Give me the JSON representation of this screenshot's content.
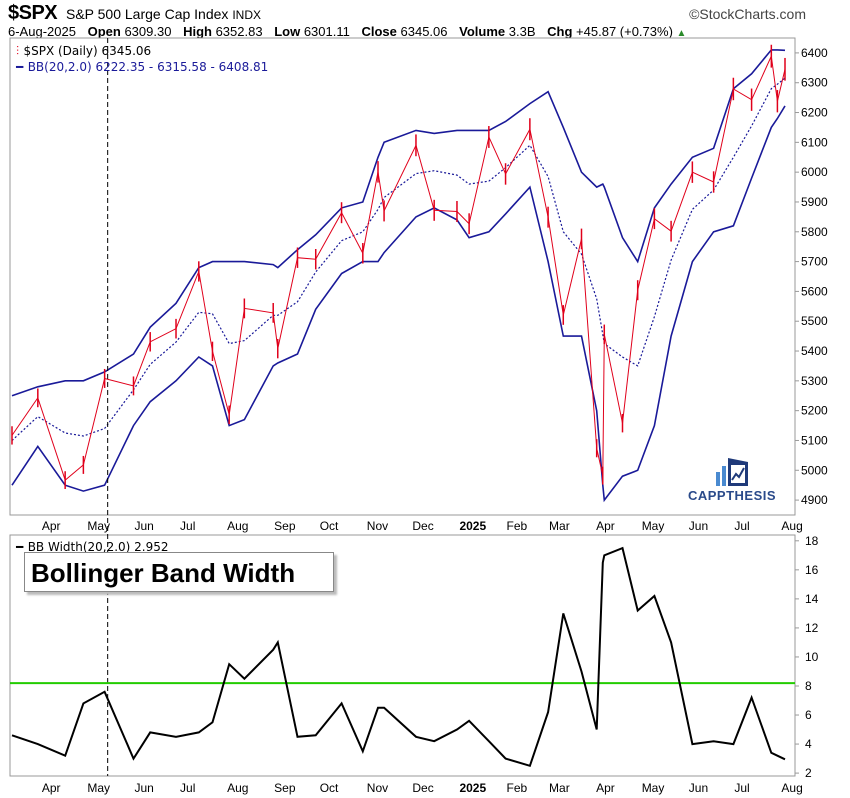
{
  "header": {
    "symbol": "$SPX",
    "name": "S&P 500 Large Cap Index",
    "exchange": "INDX",
    "source": "©StockCharts.com",
    "date": "6-Aug-2025",
    "open_label": "Open",
    "open": "6309.30",
    "high_label": "High",
    "high": "6352.83",
    "low_label": "Low",
    "low": "6301.11",
    "close_label": "Close",
    "close": "6345.06",
    "volume_label": "Volume",
    "volume": "3.3B",
    "chg_label": "Chg",
    "chg": "+45.87 (+0.73%)",
    "chg_direction": "up"
  },
  "legend": {
    "price": "$SPX (Daily) 6345.06",
    "bb": "BB(20,2.0) 6222.35 - 6315.58 - 6408.81",
    "bbw": "BB Width(20,2.0) 2.952"
  },
  "annotation": {
    "title": "Bollinger Band Width"
  },
  "logo": {
    "text": "CAPPTHESIS"
  },
  "colors": {
    "price": "#e0001b",
    "bands": "#1a1a99",
    "bbw": "#000000",
    "threshold": "#22cc00"
  },
  "chart_data": [
    {
      "type": "line",
      "panel": "price",
      "yaxis_ticks": [
        4900,
        5000,
        5100,
        5200,
        5300,
        5400,
        5500,
        5600,
        5700,
        5800,
        5900,
        6000,
        6100,
        6200,
        6300,
        6400
      ],
      "ylim": [
        4850,
        6450
      ],
      "x_labels": [
        "Apr",
        "May",
        "Jun",
        "Jul",
        "Aug",
        "Sep",
        "Oct",
        "Nov",
        "Dec",
        "2025",
        "Feb",
        "Mar",
        "Apr",
        "May",
        "Jun",
        "Jul",
        "Aug"
      ],
      "dates": [
        "2024-03-15",
        "2024-04-01",
        "2024-04-19",
        "2024-05-01",
        "2024-05-15",
        "2024-06-03",
        "2024-06-14",
        "2024-07-01",
        "2024-07-16",
        "2024-07-25",
        "2024-08-05",
        "2024-08-15",
        "2024-09-03",
        "2024-09-06",
        "2024-09-19",
        "2024-10-01",
        "2024-10-18",
        "2024-11-01",
        "2024-11-11",
        "2024-11-15",
        "2024-12-06",
        "2024-12-18",
        "2025-01-02",
        "2025-01-10",
        "2025-01-23",
        "2025-02-03",
        "2025-02-19",
        "2025-03-03",
        "2025-03-13",
        "2025-03-25",
        "2025-04-04",
        "2025-04-08",
        "2025-04-09",
        "2025-04-21",
        "2025-05-01",
        "2025-05-12",
        "2025-05-23",
        "2025-06-06",
        "2025-06-20",
        "2025-07-03",
        "2025-07-15",
        "2025-07-28",
        "2025-08-01",
        "2025-08-06"
      ],
      "series": [
        {
          "name": "$SPX (Daily)",
          "values": [
            5117,
            5243,
            4967,
            5018,
            5308,
            5283,
            5431,
            5475,
            5667,
            5399,
            5186,
            5543,
            5528,
            5408,
            5713,
            5708,
            5864,
            5728,
            6001,
            5870,
            6090,
            5872,
            5868,
            5827,
            6118,
            5994,
            6144,
            5849,
            5521,
            5776,
            5074,
            4982,
            5456,
            5158,
            5604,
            5844,
            5802,
            6000,
            5967,
            6279,
            6243,
            6389,
            6238,
            6345
          ]
        },
        {
          "name": "BB upper",
          "values": [
            5250,
            5280,
            5300,
            5300,
            5330,
            5390,
            5480,
            5560,
            5680,
            5700,
            5700,
            5700,
            5690,
            5680,
            5740,
            5790,
            5880,
            5900,
            6050,
            6100,
            6140,
            6130,
            6140,
            6140,
            6140,
            6170,
            6230,
            6270,
            6150,
            6000,
            5950,
            5960,
            5950,
            5780,
            5700,
            5880,
            5960,
            6050,
            6080,
            6280,
            6330,
            6410,
            6410,
            6408.81
          ]
        },
        {
          "name": "BB lower",
          "values": [
            4950,
            5080,
            4950,
            4930,
            4950,
            5150,
            5230,
            5300,
            5380,
            5350,
            5150,
            5170,
            5350,
            5360,
            5390,
            5540,
            5660,
            5700,
            5700,
            5730,
            5850,
            5880,
            5840,
            5780,
            5800,
            5860,
            5950,
            5700,
            5450,
            5450,
            5200,
            4950,
            4900,
            4980,
            5000,
            5150,
            5450,
            5700,
            5800,
            5820,
            5980,
            6150,
            6180,
            6222.35
          ]
        }
      ],
      "vertical_marker_date": "2024-05-17"
    },
    {
      "type": "line",
      "panel": "bbw",
      "yaxis_ticks": [
        2,
        4,
        6,
        8,
        10,
        12,
        14,
        16,
        18
      ],
      "ylim": [
        1.8,
        18.4
      ],
      "threshold": 8.2,
      "x_labels": [
        "Apr",
        "May",
        "Jun",
        "Jul",
        "Aug",
        "Sep",
        "Oct",
        "Nov",
        "Dec",
        "2025",
        "Feb",
        "Mar",
        "Apr",
        "May",
        "Jun",
        "Jul",
        "Aug"
      ],
      "series": [
        {
          "name": "BB Width(20,2.0)",
          "values": [
            4.6,
            4.0,
            3.2,
            6.8,
            7.6,
            3.0,
            4.8,
            4.5,
            4.8,
            5.5,
            9.5,
            8.5,
            10.5,
            11,
            4.5,
            4.6,
            6.8,
            3.5,
            6.5,
            6.5,
            4.5,
            4.2,
            5.0,
            5.6,
            4.2,
            3.0,
            2.5,
            6.2,
            13.0,
            9.0,
            5.0,
            16.5,
            17.0,
            17.5,
            13.2,
            14.2,
            11.0,
            4.0,
            4.2,
            4.0,
            7.2,
            3.4,
            3.2,
            2.952
          ]
        }
      ]
    }
  ]
}
